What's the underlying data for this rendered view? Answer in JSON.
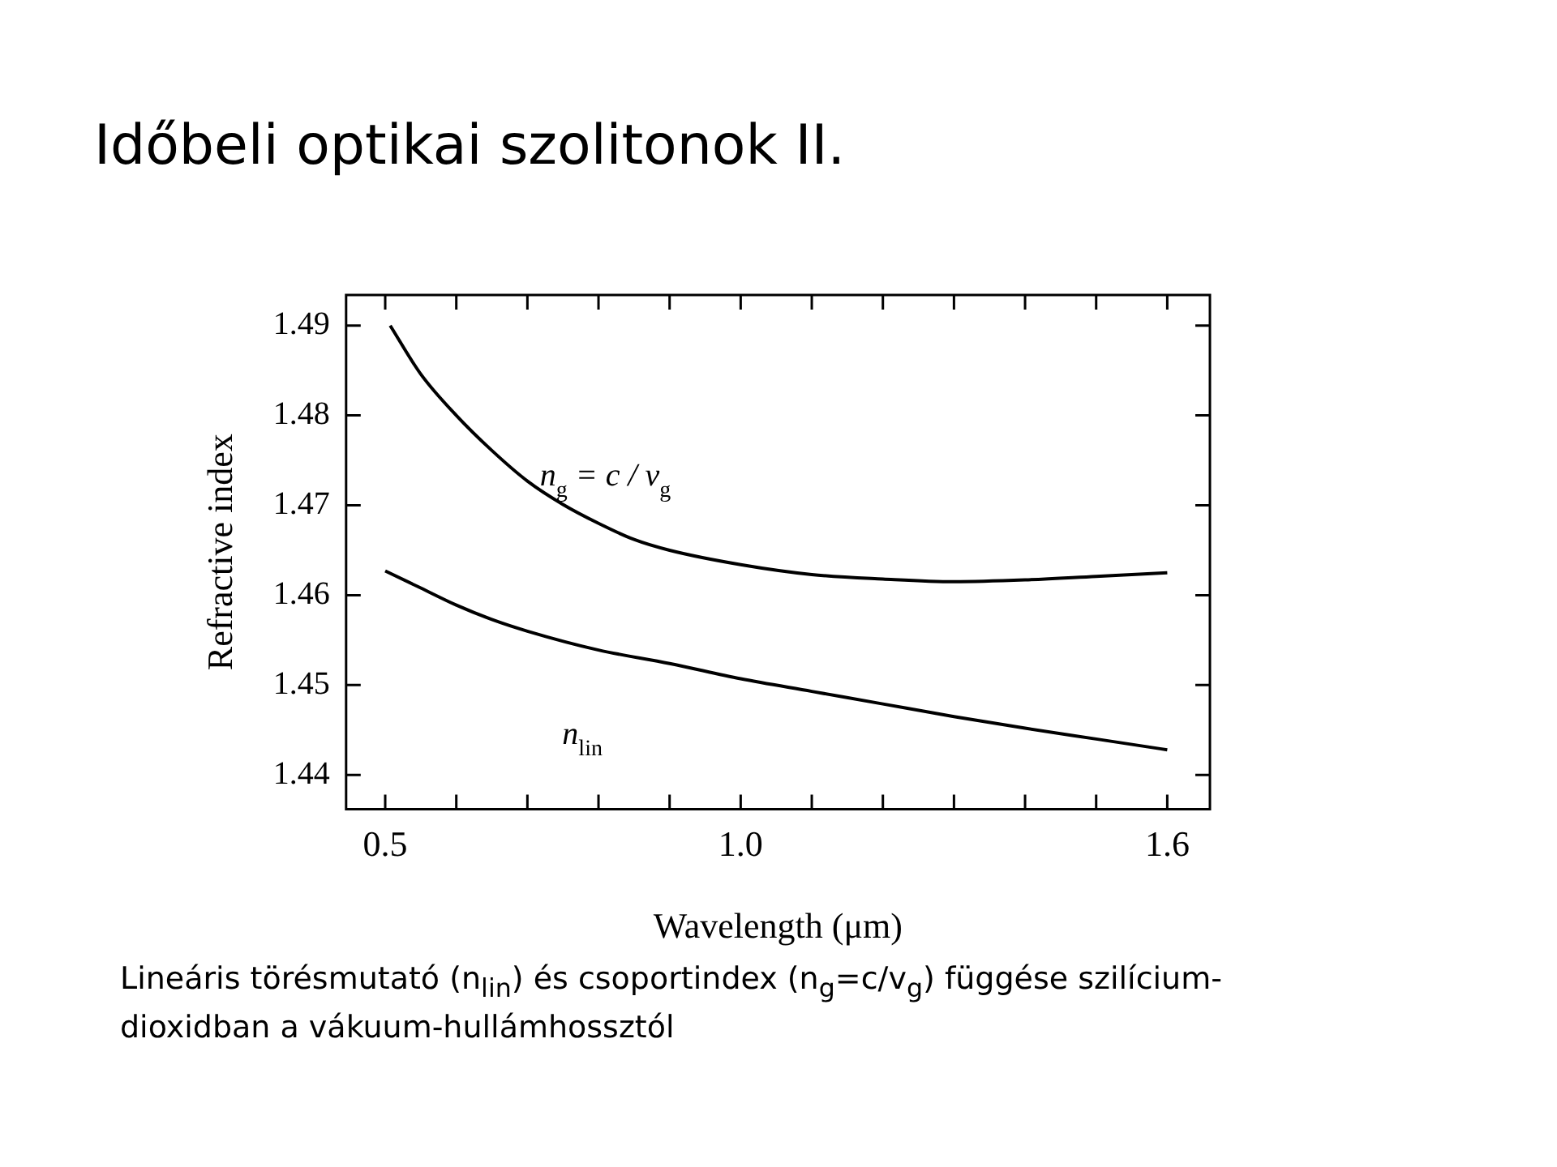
{
  "chart_data": {
    "type": "line",
    "title": "Időbeli optikai szolitonok II.",
    "xlabel": "Wavelength (μm)",
    "ylabel": "Refractive index",
    "annotations": [
      "Lineáris törésmutató (n$_{lin}$) és csoportindex (n$_{g}$=c/v$_{g}$) függése szilícium-dioxidban a vákuum-hullámhossztól"
    ],
    "xlim": [
      0.445,
      1.66
    ],
    "ylim": [
      1.4362,
      1.4934
    ],
    "xticks": [
      {
        "value": 0.5,
        "label": "0.5"
      },
      {
        "value": 0.6,
        "label": null
      },
      {
        "value": 0.7,
        "label": null
      },
      {
        "value": 0.8,
        "label": null
      },
      {
        "value": 0.9,
        "label": null
      },
      {
        "value": 1.0,
        "label": "1.0"
      },
      {
        "value": 1.1,
        "label": null
      },
      {
        "value": 1.2,
        "label": null
      },
      {
        "value": 1.3,
        "label": null
      },
      {
        "value": 1.4,
        "label": null
      },
      {
        "value": 1.5,
        "label": null
      },
      {
        "value": 1.6,
        "label": "1.6"
      }
    ],
    "yticks": [
      1.44,
      1.45,
      1.46,
      1.47,
      1.48,
      1.49
    ],
    "grid": false,
    "legend": false,
    "marker": "none",
    "line_style": "solid",
    "series": [
      {
        "name": "n$_{g}$ = c / v$_{g}$",
        "color": "#000000",
        "x": [
          0.507,
          0.55,
          0.6,
          0.65,
          0.7,
          0.75,
          0.8,
          0.85,
          0.9,
          1.0,
          1.1,
          1.2,
          1.3,
          1.4,
          1.5,
          1.6
        ],
        "values": [
          1.49,
          1.4846,
          1.48,
          1.4761,
          1.4727,
          1.4701,
          1.468,
          1.4662,
          1.465,
          1.4634,
          1.4623,
          1.4618,
          1.4615,
          1.4617,
          1.4621,
          1.4625
        ]
      },
      {
        "name": "n$_{lin}$",
        "color": "#000000",
        "x": [
          0.5,
          0.55,
          0.6,
          0.65,
          0.7,
          0.8,
          0.9,
          1.0,
          1.1,
          1.2,
          1.3,
          1.4,
          1.5,
          1.6
        ],
        "values": [
          1.4627,
          1.4608,
          1.4589,
          1.4573,
          1.456,
          1.4539,
          1.4524,
          1.4507,
          1.4493,
          1.4479,
          1.4465,
          1.4452,
          1.444,
          1.4428
        ]
      }
    ]
  }
}
